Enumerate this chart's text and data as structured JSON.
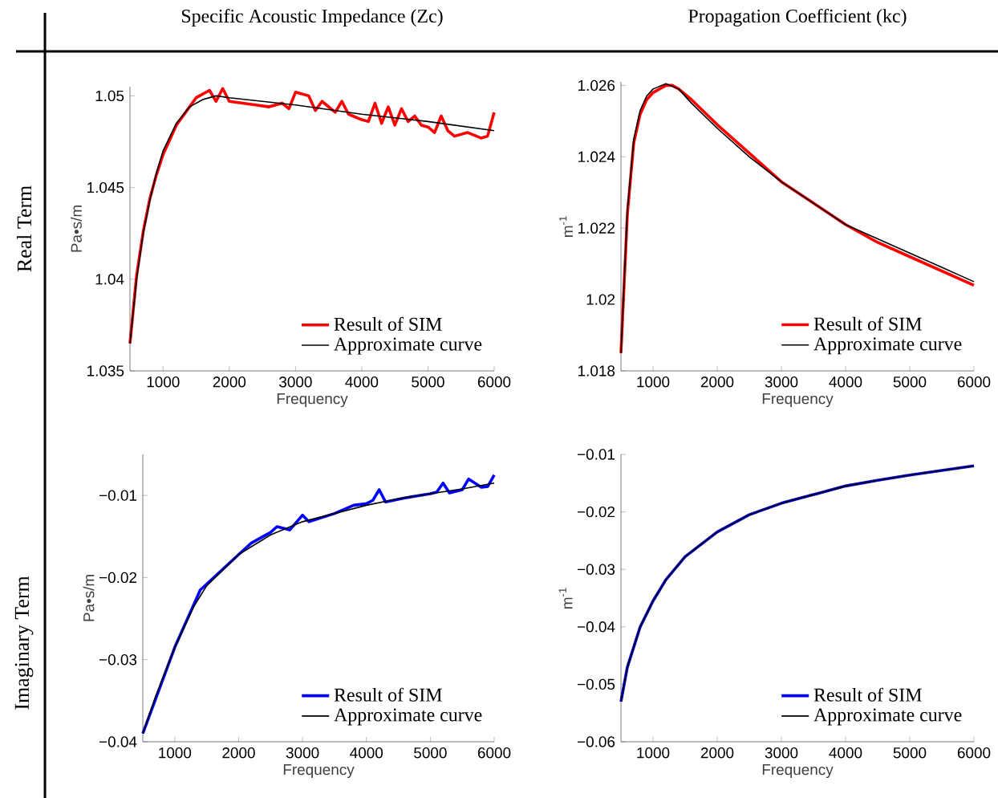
{
  "chart_data": [
    {
      "type": "line",
      "title": "Specific Acoustic Impedance (Zc)",
      "annotations": [
        "Real Term"
      ],
      "xlabel": "Frequency",
      "ylabel": "Pa•s/m",
      "xlim": [
        500,
        6000
      ],
      "xticks": [
        1000,
        2000,
        3000,
        4000,
        5000,
        6000
      ],
      "ylim": [
        1.035,
        1.0505
      ],
      "yticks": [
        1.035,
        1.04,
        1.045,
        1.05
      ],
      "legend": "bottom right",
      "series": [
        {
          "name": "Result of SIM",
          "color": "#ff0000",
          "x": [
            500,
            600,
            700,
            800,
            900,
            1000,
            1200,
            1400,
            1500,
            1600,
            1700,
            1800,
            1900,
            2000,
            2200,
            2400,
            2600,
            2800,
            2900,
            3000,
            3200,
            3300,
            3400,
            3600,
            3700,
            3800,
            4000,
            4100,
            4200,
            4300,
            4400,
            4500,
            4600,
            4700,
            4800,
            4900,
            5000,
            5100,
            5200,
            5300,
            5400,
            5600,
            5800,
            5900,
            6000
          ],
          "values": [
            1.0365,
            1.0402,
            1.0426,
            1.0444,
            1.0457,
            1.0468,
            1.0484,
            1.0494,
            1.0499,
            1.0501,
            1.0503,
            1.0497,
            1.0504,
            1.0497,
            1.0496,
            1.0495,
            1.0494,
            1.0496,
            1.0493,
            1.0502,
            1.05,
            1.0492,
            1.0497,
            1.0491,
            1.0497,
            1.049,
            1.0487,
            1.0486,
            1.0496,
            1.0485,
            1.0494,
            1.0484,
            1.0493,
            1.0486,
            1.0489,
            1.0484,
            1.0483,
            1.048,
            1.0489,
            1.0481,
            1.0478,
            1.048,
            1.0477,
            1.0478,
            1.0491
          ]
        },
        {
          "name": "Approximate curve",
          "color": "#000000",
          "x": [
            500,
            600,
            700,
            800,
            900,
            1000,
            1200,
            1400,
            1600,
            1800,
            2000,
            3000,
            4000,
            5000,
            6000
          ],
          "values": [
            1.0365,
            1.04,
            1.0425,
            1.0443,
            1.0458,
            1.047,
            1.0485,
            1.0494,
            1.0498,
            1.05,
            1.0499,
            1.0495,
            1.049,
            1.0486,
            1.0481
          ]
        }
      ]
    },
    {
      "type": "line",
      "title": "Propagation Coefficient (kc)",
      "xlabel": "Frequency",
      "ylabel": "m$^{-1}$",
      "xlim": [
        500,
        6000
      ],
      "xticks": [
        1000,
        2000,
        3000,
        4000,
        5000,
        6000
      ],
      "ylim": [
        1.018,
        1.0261
      ],
      "yticks": [
        1.018,
        1.02,
        1.022,
        1.024,
        1.026
      ],
      "legend": "bottom right",
      "series": [
        {
          "name": "Result of SIM",
          "color": "#ff0000",
          "x": [
            500,
            600,
            700,
            800,
            900,
            1000,
            1200,
            1300,
            1400,
            1600,
            2000,
            2500,
            3000,
            3500,
            4000,
            4500,
            5000,
            5500,
            6000
          ],
          "values": [
            1.0185,
            1.0224,
            1.0244,
            1.0252,
            1.0256,
            1.0258,
            1.026,
            1.026,
            1.0259,
            1.0256,
            1.0249,
            1.0241,
            1.0233,
            1.0227,
            1.0221,
            1.0216,
            1.0212,
            1.0208,
            1.0204
          ]
        },
        {
          "name": "Approximate curve",
          "color": "#000000",
          "x": [
            500,
            600,
            700,
            800,
            900,
            1000,
            1200,
            1400,
            1600,
            2000,
            2500,
            3000,
            3500,
            4000,
            4500,
            5000,
            5500,
            6000
          ],
          "values": [
            1.0185,
            1.0225,
            1.0245,
            1.0253,
            1.0257,
            1.0259,
            1.02605,
            1.0259,
            1.0255,
            1.0248,
            1.024,
            1.0233,
            1.0227,
            1.0221,
            1.0217,
            1.0213,
            1.0209,
            1.0205
          ]
        }
      ]
    },
    {
      "type": "line",
      "annotations": [
        "Imaginary Term"
      ],
      "xlabel": "Frequency",
      "ylabel": "Pa•s/m",
      "xlim": [
        500,
        6000
      ],
      "xticks": [
        1000,
        2000,
        3000,
        4000,
        5000,
        6000
      ],
      "ylim": [
        -0.04,
        -0.005
      ],
      "yticks": [
        {
          "value": -0.04,
          "label": "−0.04"
        },
        {
          "value": -0.03,
          "label": "−0.03"
        },
        {
          "value": -0.02,
          "label": "−0.02"
        },
        {
          "value": -0.01,
          "label": "−0.01"
        }
      ],
      "legend": "bottom right",
      "series": [
        {
          "name": "Result of SIM",
          "color": "#0000ff",
          "x": [
            500,
            1000,
            1400,
            1500,
            2000,
            2200,
            2500,
            2600,
            2800,
            3000,
            3100,
            3500,
            3800,
            4000,
            4100,
            4200,
            4300,
            4600,
            5000,
            5100,
            5200,
            5300,
            5500,
            5600,
            5800,
            5900,
            6000
          ],
          "values": [
            -0.039,
            -0.0285,
            -0.0215,
            -0.0208,
            -0.0172,
            -0.0158,
            -0.0145,
            -0.0138,
            -0.0142,
            -0.0124,
            -0.0132,
            -0.0122,
            -0.0112,
            -0.011,
            -0.0106,
            -0.0093,
            -0.0108,
            -0.0103,
            -0.0098,
            -0.0096,
            -0.0085,
            -0.0097,
            -0.0093,
            -0.008,
            -0.009,
            -0.0089,
            -0.0075
          ]
        },
        {
          "name": "Approximate curve",
          "color": "#000000",
          "x": [
            500,
            700,
            1000,
            1300,
            1500,
            2000,
            2500,
            3000,
            3500,
            4000,
            4500,
            5000,
            5500,
            6000
          ],
          "values": [
            -0.039,
            -0.0345,
            -0.0285,
            -0.0235,
            -0.021,
            -0.0172,
            -0.0148,
            -0.0132,
            -0.0122,
            -0.0112,
            -0.0104,
            -0.0098,
            -0.0092,
            -0.0085
          ]
        }
      ]
    },
    {
      "type": "line",
      "xlabel": "Frequency",
      "ylabel": "m$^{-1}$",
      "xlim": [
        500,
        6000
      ],
      "xticks": [
        1000,
        2000,
        3000,
        4000,
        5000,
        6000
      ],
      "ylim": [
        -0.06,
        -0.01
      ],
      "yticks": [
        {
          "value": -0.06,
          "label": "−0.06"
        },
        {
          "value": -0.05,
          "label": "−0.05"
        },
        {
          "value": -0.04,
          "label": "−0.04"
        },
        {
          "value": -0.03,
          "label": "−0.03"
        },
        {
          "value": -0.02,
          "label": "−0.02"
        },
        {
          "value": -0.01,
          "label": "−0.01"
        }
      ],
      "legend": "bottom right",
      "series": [
        {
          "name": "Result of SIM",
          "color": "#0000ff",
          "x": [
            500,
            600,
            800,
            1000,
            1200,
            1500,
            2000,
            2500,
            3000,
            3500,
            4000,
            4500,
            5000,
            5500,
            6000
          ],
          "values": [
            -0.053,
            -0.047,
            -0.04,
            -0.0355,
            -0.0318,
            -0.0278,
            -0.0235,
            -0.0205,
            -0.0185,
            -0.017,
            -0.0155,
            -0.0145,
            -0.0136,
            -0.0128,
            -0.012
          ]
        },
        {
          "name": "Approximate curve",
          "color": "#000000",
          "x": [
            500,
            600,
            800,
            1000,
            1200,
            1500,
            2000,
            2500,
            3000,
            3500,
            4000,
            4500,
            5000,
            5500,
            6000
          ],
          "values": [
            -0.053,
            -0.047,
            -0.04,
            -0.0355,
            -0.0318,
            -0.0278,
            -0.0235,
            -0.0205,
            -0.0185,
            -0.017,
            -0.0155,
            -0.0145,
            -0.0136,
            -0.0128,
            -0.012
          ]
        }
      ]
    }
  ]
}
